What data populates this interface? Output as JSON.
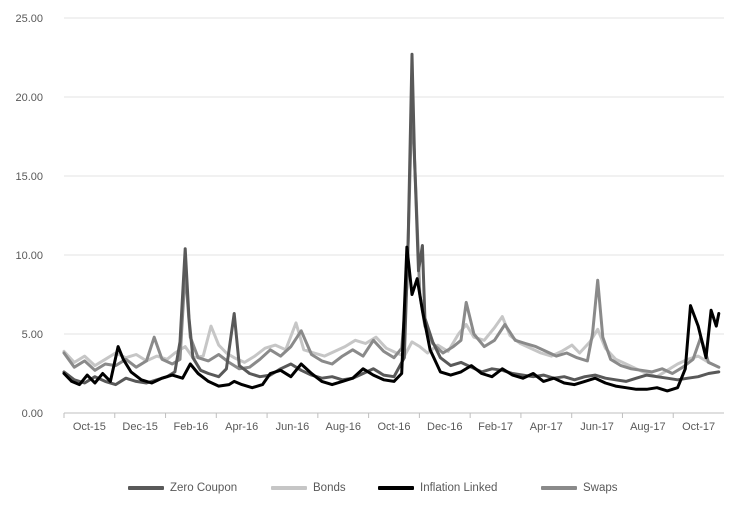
{
  "chart_data": {
    "type": "line",
    "title": "",
    "xlabel": "",
    "ylabel": "",
    "ylim": [
      0,
      25
    ],
    "y_ticks": [
      "0.00",
      "5.00",
      "10.00",
      "15.00",
      "20.00",
      "25.00"
    ],
    "x_ticks": [
      "Oct-15",
      "Dec-15",
      "Feb-16",
      "Apr-16",
      "Jun-16",
      "Aug-16",
      "Oct-16",
      "Dec-16",
      "Feb-17",
      "Apr-17",
      "Jun-17",
      "Aug-17",
      "Oct-17"
    ],
    "grid": "horizontal",
    "legend_position": "bottom",
    "x_range_months": [
      0,
      25.6
    ],
    "series": [
      {
        "name": "Zero Coupon",
        "color": "#595959",
        "points": [
          [
            0,
            2.6
          ],
          [
            0.4,
            2.1
          ],
          [
            0.8,
            1.9
          ],
          [
            1.2,
            2.3
          ],
          [
            1.6,
            2.0
          ],
          [
            2.0,
            1.8
          ],
          [
            2.4,
            2.2
          ],
          [
            2.8,
            2.0
          ],
          [
            3.2,
            1.9
          ],
          [
            3.6,
            2.1
          ],
          [
            4.0,
            2.3
          ],
          [
            4.3,
            2.6
          ],
          [
            4.5,
            4.5
          ],
          [
            4.7,
            10.4
          ],
          [
            4.85,
            6.0
          ],
          [
            5.0,
            3.5
          ],
          [
            5.3,
            2.7
          ],
          [
            5.6,
            2.5
          ],
          [
            6.0,
            2.3
          ],
          [
            6.3,
            2.8
          ],
          [
            6.6,
            6.3
          ],
          [
            6.8,
            3.0
          ],
          [
            7.2,
            2.5
          ],
          [
            7.6,
            2.3
          ],
          [
            8.0,
            2.4
          ],
          [
            8.4,
            2.8
          ],
          [
            8.8,
            3.1
          ],
          [
            9.2,
            2.7
          ],
          [
            9.6,
            2.4
          ],
          [
            10.0,
            2.2
          ],
          [
            10.4,
            2.3
          ],
          [
            10.8,
            2.1
          ],
          [
            11.2,
            2.2
          ],
          [
            11.6,
            2.5
          ],
          [
            12.0,
            2.8
          ],
          [
            12.4,
            2.4
          ],
          [
            12.8,
            2.3
          ],
          [
            13.2,
            3.5
          ],
          [
            13.35,
            11.0
          ],
          [
            13.5,
            22.7
          ],
          [
            13.6,
            16.0
          ],
          [
            13.75,
            9.0
          ],
          [
            13.9,
            10.6
          ],
          [
            14.0,
            6.0
          ],
          [
            14.3,
            4.5
          ],
          [
            14.6,
            3.5
          ],
          [
            15.0,
            3.0
          ],
          [
            15.4,
            3.2
          ],
          [
            15.8,
            2.9
          ],
          [
            16.2,
            2.6
          ],
          [
            16.6,
            2.8
          ],
          [
            17.0,
            2.7
          ],
          [
            17.4,
            2.5
          ],
          [
            17.8,
            2.4
          ],
          [
            18.2,
            2.3
          ],
          [
            18.6,
            2.4
          ],
          [
            19.0,
            2.2
          ],
          [
            19.4,
            2.3
          ],
          [
            19.8,
            2.1
          ],
          [
            20.2,
            2.3
          ],
          [
            20.6,
            2.4
          ],
          [
            21.0,
            2.2
          ],
          [
            21.4,
            2.1
          ],
          [
            21.8,
            2.0
          ],
          [
            22.2,
            2.2
          ],
          [
            22.6,
            2.4
          ],
          [
            23.0,
            2.3
          ],
          [
            23.4,
            2.2
          ],
          [
            23.8,
            2.1
          ],
          [
            24.2,
            2.2
          ],
          [
            24.6,
            2.3
          ],
          [
            25.0,
            2.5
          ],
          [
            25.4,
            2.6
          ]
        ]
      },
      {
        "name": "Bonds",
        "color": "#c6c6c6",
        "points": [
          [
            0,
            3.9
          ],
          [
            0.4,
            3.2
          ],
          [
            0.8,
            3.6
          ],
          [
            1.2,
            3.0
          ],
          [
            1.6,
            3.4
          ],
          [
            2.0,
            3.8
          ],
          [
            2.4,
            3.5
          ],
          [
            2.8,
            3.7
          ],
          [
            3.2,
            3.3
          ],
          [
            3.6,
            3.6
          ],
          [
            4.0,
            3.4
          ],
          [
            4.3,
            3.8
          ],
          [
            4.7,
            4.2
          ],
          [
            5.0,
            3.5
          ],
          [
            5.4,
            3.6
          ],
          [
            5.7,
            5.5
          ],
          [
            6.0,
            4.3
          ],
          [
            6.3,
            3.8
          ],
          [
            6.6,
            3.5
          ],
          [
            7.0,
            3.2
          ],
          [
            7.4,
            3.6
          ],
          [
            7.8,
            4.1
          ],
          [
            8.2,
            4.3
          ],
          [
            8.6,
            4.0
          ],
          [
            9.0,
            5.7
          ],
          [
            9.3,
            4.0
          ],
          [
            9.7,
            3.8
          ],
          [
            10.1,
            3.6
          ],
          [
            10.5,
            3.9
          ],
          [
            10.9,
            4.2
          ],
          [
            11.3,
            4.6
          ],
          [
            11.7,
            4.4
          ],
          [
            12.1,
            4.8
          ],
          [
            12.5,
            4.1
          ],
          [
            12.9,
            3.8
          ],
          [
            13.2,
            3.6
          ],
          [
            13.5,
            4.5
          ],
          [
            13.8,
            4.2
          ],
          [
            14.1,
            3.8
          ],
          [
            14.5,
            4.3
          ],
          [
            14.9,
            3.9
          ],
          [
            15.3,
            5.0
          ],
          [
            15.6,
            5.6
          ],
          [
            15.9,
            4.8
          ],
          [
            16.3,
            4.6
          ],
          [
            16.7,
            5.4
          ],
          [
            17.0,
            6.1
          ],
          [
            17.3,
            4.9
          ],
          [
            17.7,
            4.4
          ],
          [
            18.1,
            4.1
          ],
          [
            18.5,
            3.8
          ],
          [
            18.9,
            3.6
          ],
          [
            19.3,
            3.9
          ],
          [
            19.7,
            4.3
          ],
          [
            20.0,
            3.8
          ],
          [
            20.4,
            4.5
          ],
          [
            20.7,
            5.3
          ],
          [
            21.0,
            4.1
          ],
          [
            21.4,
            3.4
          ],
          [
            21.8,
            3.1
          ],
          [
            22.2,
            2.8
          ],
          [
            22.6,
            2.5
          ],
          [
            23.0,
            2.3
          ],
          [
            23.4,
            2.7
          ],
          [
            23.8,
            3.1
          ],
          [
            24.2,
            3.4
          ],
          [
            24.6,
            3.6
          ],
          [
            25.0,
            3.2
          ],
          [
            25.4,
            2.9
          ]
        ]
      },
      {
        "name": "Inflation Linked",
        "color": "#000000",
        "points": [
          [
            0,
            2.5
          ],
          [
            0.3,
            2.0
          ],
          [
            0.6,
            1.8
          ],
          [
            0.9,
            2.4
          ],
          [
            1.2,
            1.9
          ],
          [
            1.5,
            2.5
          ],
          [
            1.8,
            2.0
          ],
          [
            2.1,
            4.2
          ],
          [
            2.3,
            3.4
          ],
          [
            2.6,
            2.6
          ],
          [
            3.0,
            2.1
          ],
          [
            3.4,
            1.9
          ],
          [
            3.8,
            2.2
          ],
          [
            4.2,
            2.4
          ],
          [
            4.6,
            2.2
          ],
          [
            4.9,
            3.1
          ],
          [
            5.2,
            2.5
          ],
          [
            5.6,
            2.0
          ],
          [
            6.0,
            1.7
          ],
          [
            6.4,
            1.8
          ],
          [
            6.6,
            2.0
          ],
          [
            6.9,
            1.8
          ],
          [
            7.3,
            1.6
          ],
          [
            7.7,
            1.8
          ],
          [
            8.0,
            2.5
          ],
          [
            8.4,
            2.7
          ],
          [
            8.8,
            2.3
          ],
          [
            9.2,
            3.1
          ],
          [
            9.6,
            2.5
          ],
          [
            10.0,
            2.0
          ],
          [
            10.4,
            1.8
          ],
          [
            10.8,
            2.0
          ],
          [
            11.2,
            2.2
          ],
          [
            11.6,
            2.8
          ],
          [
            12.0,
            2.4
          ],
          [
            12.4,
            2.1
          ],
          [
            12.8,
            2.0
          ],
          [
            13.1,
            2.5
          ],
          [
            13.3,
            10.5
          ],
          [
            13.5,
            7.5
          ],
          [
            13.7,
            8.5
          ],
          [
            13.9,
            6.5
          ],
          [
            14.2,
            4.0
          ],
          [
            14.6,
            2.6
          ],
          [
            15.0,
            2.4
          ],
          [
            15.4,
            2.6
          ],
          [
            15.8,
            3.0
          ],
          [
            16.2,
            2.5
          ],
          [
            16.6,
            2.3
          ],
          [
            17.0,
            2.8
          ],
          [
            17.4,
            2.4
          ],
          [
            17.8,
            2.2
          ],
          [
            18.2,
            2.5
          ],
          [
            18.6,
            2.0
          ],
          [
            19.0,
            2.2
          ],
          [
            19.4,
            1.9
          ],
          [
            19.8,
            1.8
          ],
          [
            20.2,
            2.0
          ],
          [
            20.6,
            2.2
          ],
          [
            21.0,
            1.9
          ],
          [
            21.4,
            1.7
          ],
          [
            21.8,
            1.6
          ],
          [
            22.2,
            1.5
          ],
          [
            22.6,
            1.5
          ],
          [
            23.0,
            1.6
          ],
          [
            23.4,
            1.4
          ],
          [
            23.8,
            1.6
          ],
          [
            24.1,
            2.8
          ],
          [
            24.3,
            6.8
          ],
          [
            24.6,
            5.5
          ],
          [
            24.9,
            3.5
          ],
          [
            25.1,
            6.5
          ],
          [
            25.3,
            5.5
          ],
          [
            25.4,
            6.3
          ]
        ]
      },
      {
        "name": "Swaps",
        "color": "#8a8a8a",
        "points": [
          [
            0,
            3.8
          ],
          [
            0.4,
            2.9
          ],
          [
            0.8,
            3.3
          ],
          [
            1.2,
            2.7
          ],
          [
            1.6,
            3.1
          ],
          [
            2.0,
            3.0
          ],
          [
            2.4,
            3.4
          ],
          [
            2.8,
            2.9
          ],
          [
            3.2,
            3.3
          ],
          [
            3.5,
            4.8
          ],
          [
            3.8,
            3.4
          ],
          [
            4.2,
            3.1
          ],
          [
            4.5,
            3.4
          ],
          [
            4.7,
            9.0
          ],
          [
            4.9,
            4.8
          ],
          [
            5.2,
            3.5
          ],
          [
            5.6,
            3.3
          ],
          [
            6.0,
            3.7
          ],
          [
            6.4,
            3.2
          ],
          [
            6.8,
            2.8
          ],
          [
            7.2,
            2.9
          ],
          [
            7.6,
            3.4
          ],
          [
            8.0,
            4.0
          ],
          [
            8.4,
            3.6
          ],
          [
            8.8,
            4.2
          ],
          [
            9.2,
            5.2
          ],
          [
            9.6,
            3.7
          ],
          [
            10.0,
            3.3
          ],
          [
            10.4,
            3.1
          ],
          [
            10.8,
            3.6
          ],
          [
            11.2,
            4.0
          ],
          [
            11.6,
            3.6
          ],
          [
            12.0,
            4.6
          ],
          [
            12.4,
            3.9
          ],
          [
            12.8,
            3.5
          ],
          [
            13.1,
            4.1
          ],
          [
            13.3,
            8.0
          ],
          [
            13.5,
            19.8
          ],
          [
            13.65,
            14.0
          ],
          [
            13.8,
            7.5
          ],
          [
            14.0,
            5.5
          ],
          [
            14.3,
            4.4
          ],
          [
            14.7,
            3.8
          ],
          [
            15.1,
            4.2
          ],
          [
            15.4,
            4.6
          ],
          [
            15.6,
            7.0
          ],
          [
            15.9,
            5.0
          ],
          [
            16.3,
            4.2
          ],
          [
            16.7,
            4.6
          ],
          [
            17.1,
            5.6
          ],
          [
            17.5,
            4.6
          ],
          [
            17.9,
            4.4
          ],
          [
            18.3,
            4.2
          ],
          [
            18.7,
            3.9
          ],
          [
            19.1,
            3.6
          ],
          [
            19.5,
            3.8
          ],
          [
            19.9,
            3.5
          ],
          [
            20.3,
            3.3
          ],
          [
            20.5,
            5.0
          ],
          [
            20.7,
            8.4
          ],
          [
            20.9,
            4.8
          ],
          [
            21.2,
            3.4
          ],
          [
            21.6,
            3.0
          ],
          [
            22.0,
            2.8
          ],
          [
            22.4,
            2.7
          ],
          [
            22.8,
            2.6
          ],
          [
            23.2,
            2.8
          ],
          [
            23.6,
            2.5
          ],
          [
            24.0,
            2.9
          ],
          [
            24.4,
            3.4
          ],
          [
            24.7,
            4.8
          ],
          [
            25.0,
            3.2
          ],
          [
            25.4,
            2.9
          ]
        ]
      }
    ]
  }
}
